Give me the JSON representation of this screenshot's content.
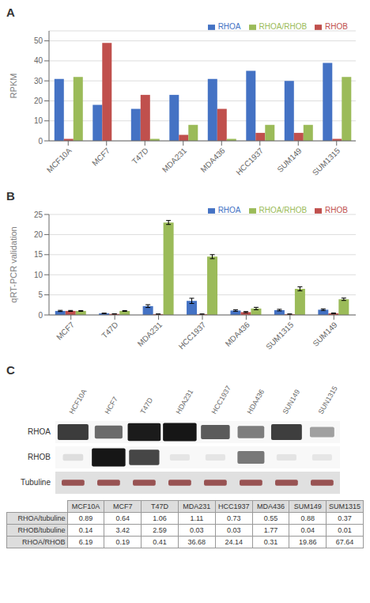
{
  "chart_data": [
    {
      "type": "bar",
      "title": "A",
      "categories": [
        "MCF10A",
        "MCF7",
        "T47D",
        "MDA231",
        "MDA436",
        "HCC1937",
        "SUM149",
        "SUM1315"
      ],
      "series": [
        {
          "name": "RHOA",
          "color": "#4472C4",
          "values": [
            31,
            18,
            16,
            23,
            31,
            35,
            30,
            39
          ]
        },
        {
          "name": "RHOB",
          "color": "#C0504D",
          "values": [
            1,
            49,
            23,
            3,
            16,
            4,
            4,
            1
          ]
        },
        {
          "name": "RHOA/RHOB",
          "color": "#9BBB59",
          "values": [
            32,
            0,
            1,
            8,
            1,
            8,
            8,
            32
          ]
        }
      ],
      "ylabel": "RPKM",
      "ylim": [
        0,
        55
      ],
      "yticks": [
        0,
        10,
        20,
        30,
        40,
        50
      ],
      "grid": true,
      "legend": "upper right"
    },
    {
      "type": "bar",
      "title": "B",
      "categories": [
        "MCF7",
        "T47D",
        "MDA231",
        "HCC1937",
        "MDA436",
        "SUM1315",
        "SUM149"
      ],
      "series": [
        {
          "name": "RHOA",
          "color": "#4472C4",
          "values": [
            1.0,
            0.4,
            2.2,
            3.5,
            1.1,
            1.2,
            1.3
          ],
          "errors": [
            0.15,
            0.05,
            0.35,
            0.65,
            0.2,
            0.2,
            0.2
          ]
        },
        {
          "name": "RHOB",
          "color": "#C0504D",
          "values": [
            1.0,
            0.25,
            0.2,
            0.2,
            0.7,
            0.2,
            0.4
          ],
          "errors": [
            0.12,
            0.04,
            0.05,
            0.05,
            0.15,
            0.05,
            0.1
          ]
        },
        {
          "name": "RHOA/RHOB",
          "color": "#9BBB59",
          "values": [
            1.0,
            1.0,
            23.0,
            14.5,
            1.6,
            6.5,
            3.9
          ],
          "errors": [
            0.1,
            0.1,
            0.5,
            0.5,
            0.3,
            0.5,
            0.3
          ]
        }
      ],
      "ylabel": "qRT-PCR validation",
      "ylim": [
        0,
        25
      ],
      "yticks": [
        0,
        5,
        10,
        15,
        20,
        25
      ],
      "grid": true,
      "legend": "upper right"
    },
    {
      "type": "blot",
      "title": "C",
      "categories": [
        "HCF10A",
        "HCF7",
        "T47D",
        "HDA231",
        "HCC1937",
        "HDA436",
        "SUN149",
        "SUN1315"
      ],
      "series": [
        {
          "name": "RHOA",
          "values": [
            0.89,
            0.64,
            1.06,
            1.11,
            0.73,
            0.55,
            0.88,
            0.37
          ]
        },
        {
          "name": "RHOB",
          "values": [
            0.14,
            3.42,
            2.59,
            0.03,
            0.03,
            1.77,
            0.04,
            0.01
          ]
        },
        {
          "name": "Tubuline",
          "color": "#7B1A1A"
        }
      ],
      "tick_labels": "x"
    },
    {
      "type": "table",
      "columns": [
        "MCF10A",
        "MCF7",
        "T47D",
        "MDA231",
        "HCC1937",
        "MDA436",
        "SUM149",
        "SUM1315"
      ],
      "rows": [
        "RHOA/tubuline",
        "RHOB/tubuline",
        "RHOA/RHOB"
      ],
      "cells": [
        [
          0.89,
          0.64,
          1.06,
          1.11,
          0.73,
          0.55,
          0.88,
          0.37
        ],
        [
          0.14,
          3.42,
          2.59,
          0.03,
          0.03,
          1.77,
          0.04,
          0.01
        ],
        [
          6.19,
          0.19,
          0.41,
          36.68,
          24.14,
          0.31,
          19.86,
          67.64
        ]
      ]
    }
  ]
}
